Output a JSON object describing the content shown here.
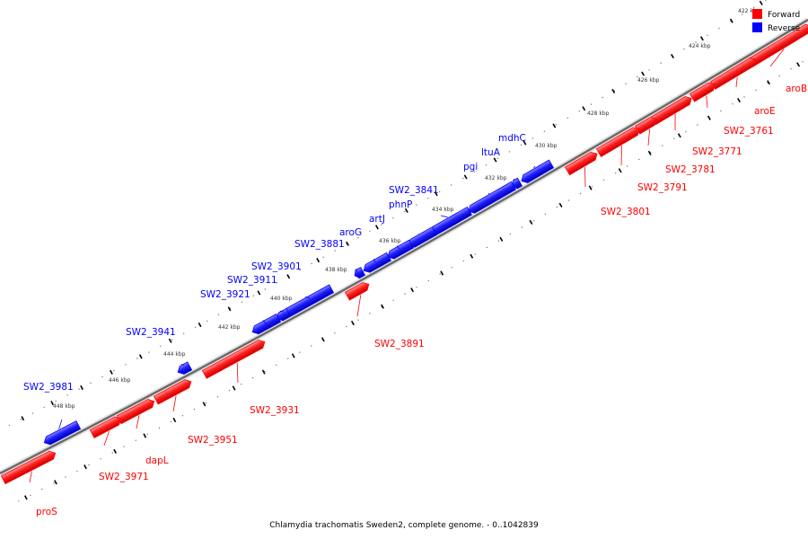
{
  "caption": "Chlamydia trachomatis Sweden2, complete genome. - 0..1042839",
  "legend": [
    {
      "label": "Forward",
      "color": "#ff0000"
    },
    {
      "label": "Reverse",
      "color": "#0000ff"
    }
  ],
  "colors": {
    "forward": "#ff0000",
    "reverse": "#0000ff",
    "backbone": "#888888"
  },
  "kbp_ticks": [
    "422 kbp",
    "424 kbp",
    "426 kbp",
    "428 kbp",
    "430 kbp",
    "432 kbp",
    "434 kbp",
    "436 kbp",
    "438 kbp",
    "440 kbp",
    "442 kbp",
    "444 kbp",
    "446 kbp",
    "448 kbp"
  ],
  "genes": [
    {
      "label": "aroB",
      "strand": "forward"
    },
    {
      "label": "aroE",
      "strand": "forward"
    },
    {
      "label": "SW2_3761",
      "strand": "forward"
    },
    {
      "label": "SW2_3771",
      "strand": "forward"
    },
    {
      "label": "SW2_3781",
      "strand": "forward"
    },
    {
      "label": "SW2_3791",
      "strand": "forward"
    },
    {
      "label": "SW2_3801",
      "strand": "forward"
    },
    {
      "label": "mdhC",
      "strand": "reverse"
    },
    {
      "label": "ltuA",
      "strand": "reverse"
    },
    {
      "label": "pgi",
      "strand": "reverse"
    },
    {
      "label": "SW2_3841",
      "strand": "reverse"
    },
    {
      "label": "phnP",
      "strand": "reverse"
    },
    {
      "label": "artJ",
      "strand": "reverse"
    },
    {
      "label": "aroG",
      "strand": "reverse"
    },
    {
      "label": "SW2_3881",
      "strand": "reverse"
    },
    {
      "label": "SW2_3891",
      "strand": "forward"
    },
    {
      "label": "SW2_3901",
      "strand": "reverse"
    },
    {
      "label": "SW2_3911",
      "strand": "reverse"
    },
    {
      "label": "SW2_3921",
      "strand": "reverse"
    },
    {
      "label": "SW2_3931",
      "strand": "forward"
    },
    {
      "label": "SW2_3941",
      "strand": "reverse"
    },
    {
      "label": "SW2_3951",
      "strand": "forward"
    },
    {
      "label": "dapL",
      "strand": "forward"
    },
    {
      "label": "SW2_3971",
      "strand": "forward"
    },
    {
      "label": "SW2_3981",
      "strand": "reverse"
    },
    {
      "label": "proS",
      "strand": "forward"
    }
  ]
}
